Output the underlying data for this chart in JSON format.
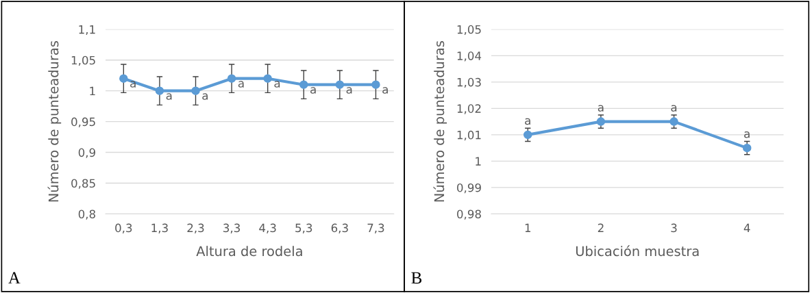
{
  "chart_data": [
    {
      "type": "line",
      "xlabel": "Altura de rodela",
      "ylabel": "Número de punteaduras",
      "categories": [
        "0,3",
        "1,3",
        "2,3",
        "3,3",
        "4,3",
        "5,3",
        "6,3",
        "7,3"
      ],
      "series": [
        {
          "color": "#5b9bd5",
          "values": [
            1.02,
            1.0,
            1.0,
            1.02,
            1.02,
            1.01,
            1.01,
            1.01
          ],
          "errors": [
            0.023,
            0.023,
            0.023,
            0.023,
            0.023,
            0.023,
            0.023,
            0.023
          ]
        }
      ],
      "marker": "circle",
      "line_style": "solid",
      "grid": "y",
      "legend": false,
      "ylim": [
        0.8,
        1.1
      ],
      "yticks": [
        {
          "value": 0.8,
          "label": "0,8"
        },
        {
          "value": 0.85,
          "label": "0,85"
        },
        {
          "value": 0.9,
          "label": "0,9"
        },
        {
          "value": 0.95,
          "label": "0,95"
        },
        {
          "value": 1.0,
          "label": "1"
        },
        {
          "value": 1.05,
          "label": "1,05"
        },
        {
          "value": 1.1,
          "label": "1,1"
        }
      ],
      "annotations": [
        {
          "text": "a",
          "x": "0,3",
          "y": 1.02
        },
        {
          "text": "a",
          "x": "1,3",
          "y": 1.0
        },
        {
          "text": "a",
          "x": "2,3",
          "y": 1.0
        },
        {
          "text": "a",
          "x": "3,3",
          "y": 1.02
        },
        {
          "text": "a",
          "x": "4,3",
          "y": 1.02
        },
        {
          "text": "a",
          "x": "5,3",
          "y": 1.01
        },
        {
          "text": "a",
          "x": "6,3",
          "y": 1.01
        },
        {
          "text": "a",
          "x": "7,3",
          "y": 1.01
        },
        "A"
      ]
    },
    {
      "type": "line",
      "xlabel": "Ubicación muestra",
      "ylabel": "Número de punteaduras",
      "categories": [
        "1",
        "2",
        "3",
        "4"
      ],
      "series": [
        {
          "color": "#5b9bd5",
          "values": [
            1.01,
            1.015,
            1.015,
            1.005
          ],
          "errors": [
            0.0025,
            0.0025,
            0.0025,
            0.0025
          ]
        }
      ],
      "marker": "circle",
      "line_style": "solid",
      "grid": "y",
      "legend": false,
      "ylim": [
        0.98,
        1.05
      ],
      "yticks": [
        {
          "value": 0.98,
          "label": "0,98"
        },
        {
          "value": 0.99,
          "label": "0,99"
        },
        {
          "value": 1.0,
          "label": "1"
        },
        {
          "value": 1.01,
          "label": "1,01"
        },
        {
          "value": 1.02,
          "label": "1,02"
        },
        {
          "value": 1.03,
          "label": "1,03"
        },
        {
          "value": 1.04,
          "label": "1,04"
        },
        {
          "value": 1.05,
          "label": "1,05"
        }
      ],
      "annotations": [
        {
          "text": "a",
          "x": "1",
          "y": 1.01
        },
        {
          "text": "a",
          "x": "2",
          "y": 1.015
        },
        {
          "text": "a",
          "x": "3",
          "y": 1.015
        },
        {
          "text": "a",
          "x": "4",
          "y": 1.005
        },
        "B"
      ]
    }
  ]
}
